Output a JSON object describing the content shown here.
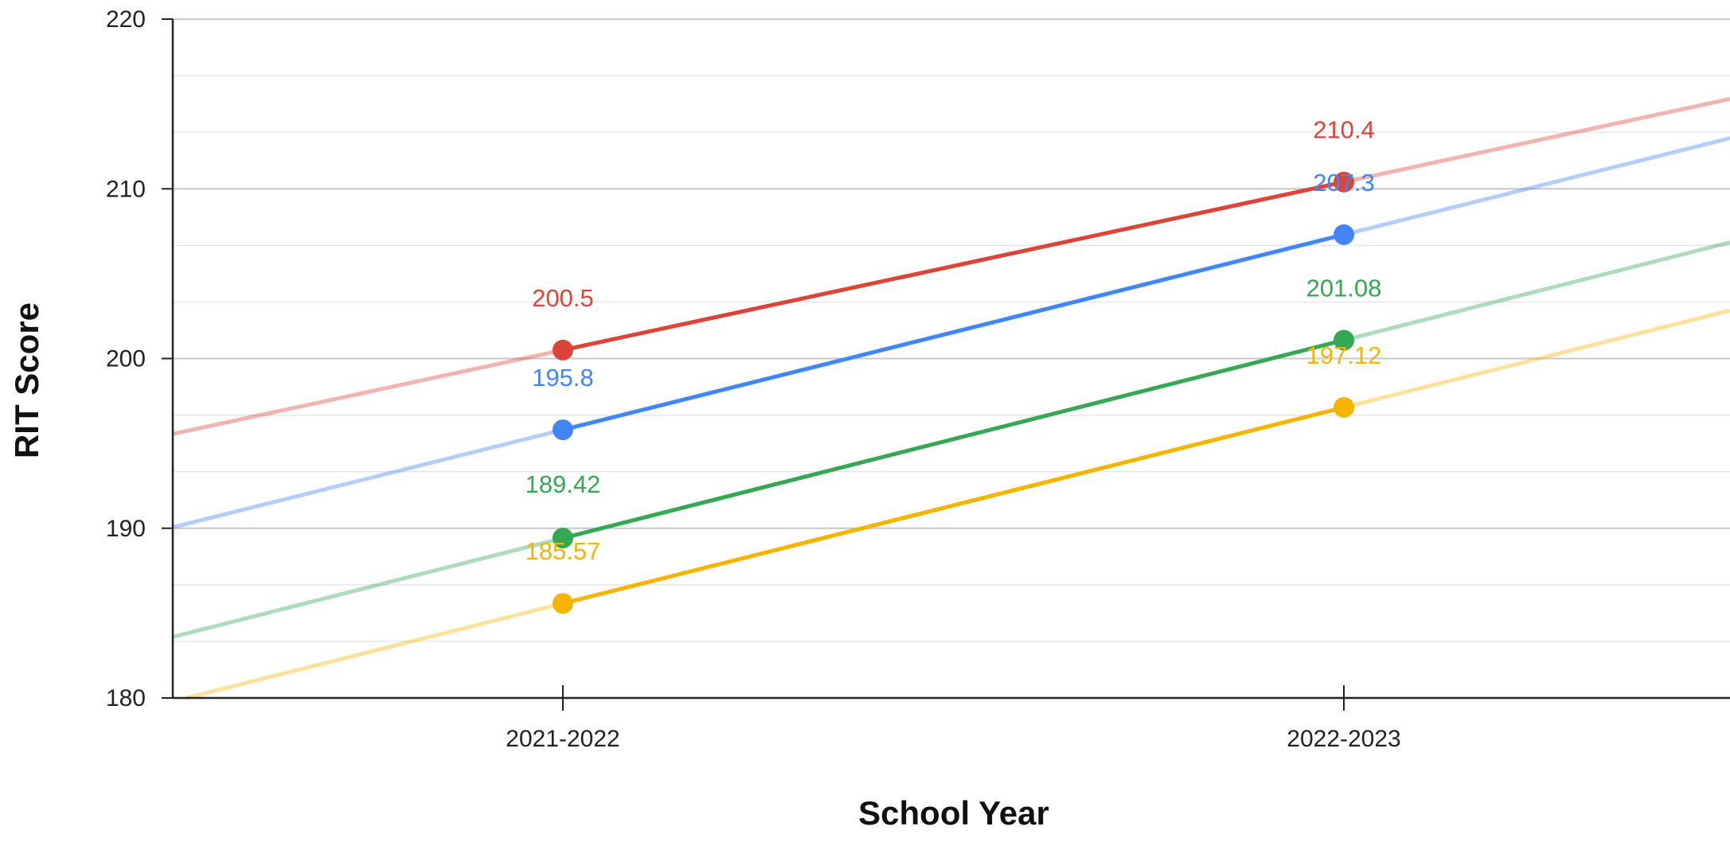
{
  "chart_data": {
    "type": "line",
    "xlabel": "School Year",
    "ylabel": "RIT Score",
    "categories": [
      "2021-2022",
      "2022-2023"
    ],
    "ylim": [
      180,
      220
    ],
    "yticks": [
      "180",
      "190",
      "200",
      "210",
      "220"
    ],
    "grid": true,
    "legend": "none",
    "trendlines": true,
    "series": [
      {
        "values": [
          200.5,
          210.4
        ],
        "labels": [
          "200.5",
          "210.4"
        ],
        "color": "#db4437"
      },
      {
        "values": [
          195.8,
          207.3
        ],
        "labels": [
          "195.8",
          "207.3"
        ],
        "color": "#4285f4"
      },
      {
        "values": [
          189.42,
          201.08
        ],
        "labels": [
          "189.42",
          "201.08"
        ],
        "color": "#34a853"
      },
      {
        "values": [
          185.57,
          197.12
        ],
        "labels": [
          "185.57",
          "197.12"
        ],
        "color": "#f4b400"
      }
    ]
  }
}
